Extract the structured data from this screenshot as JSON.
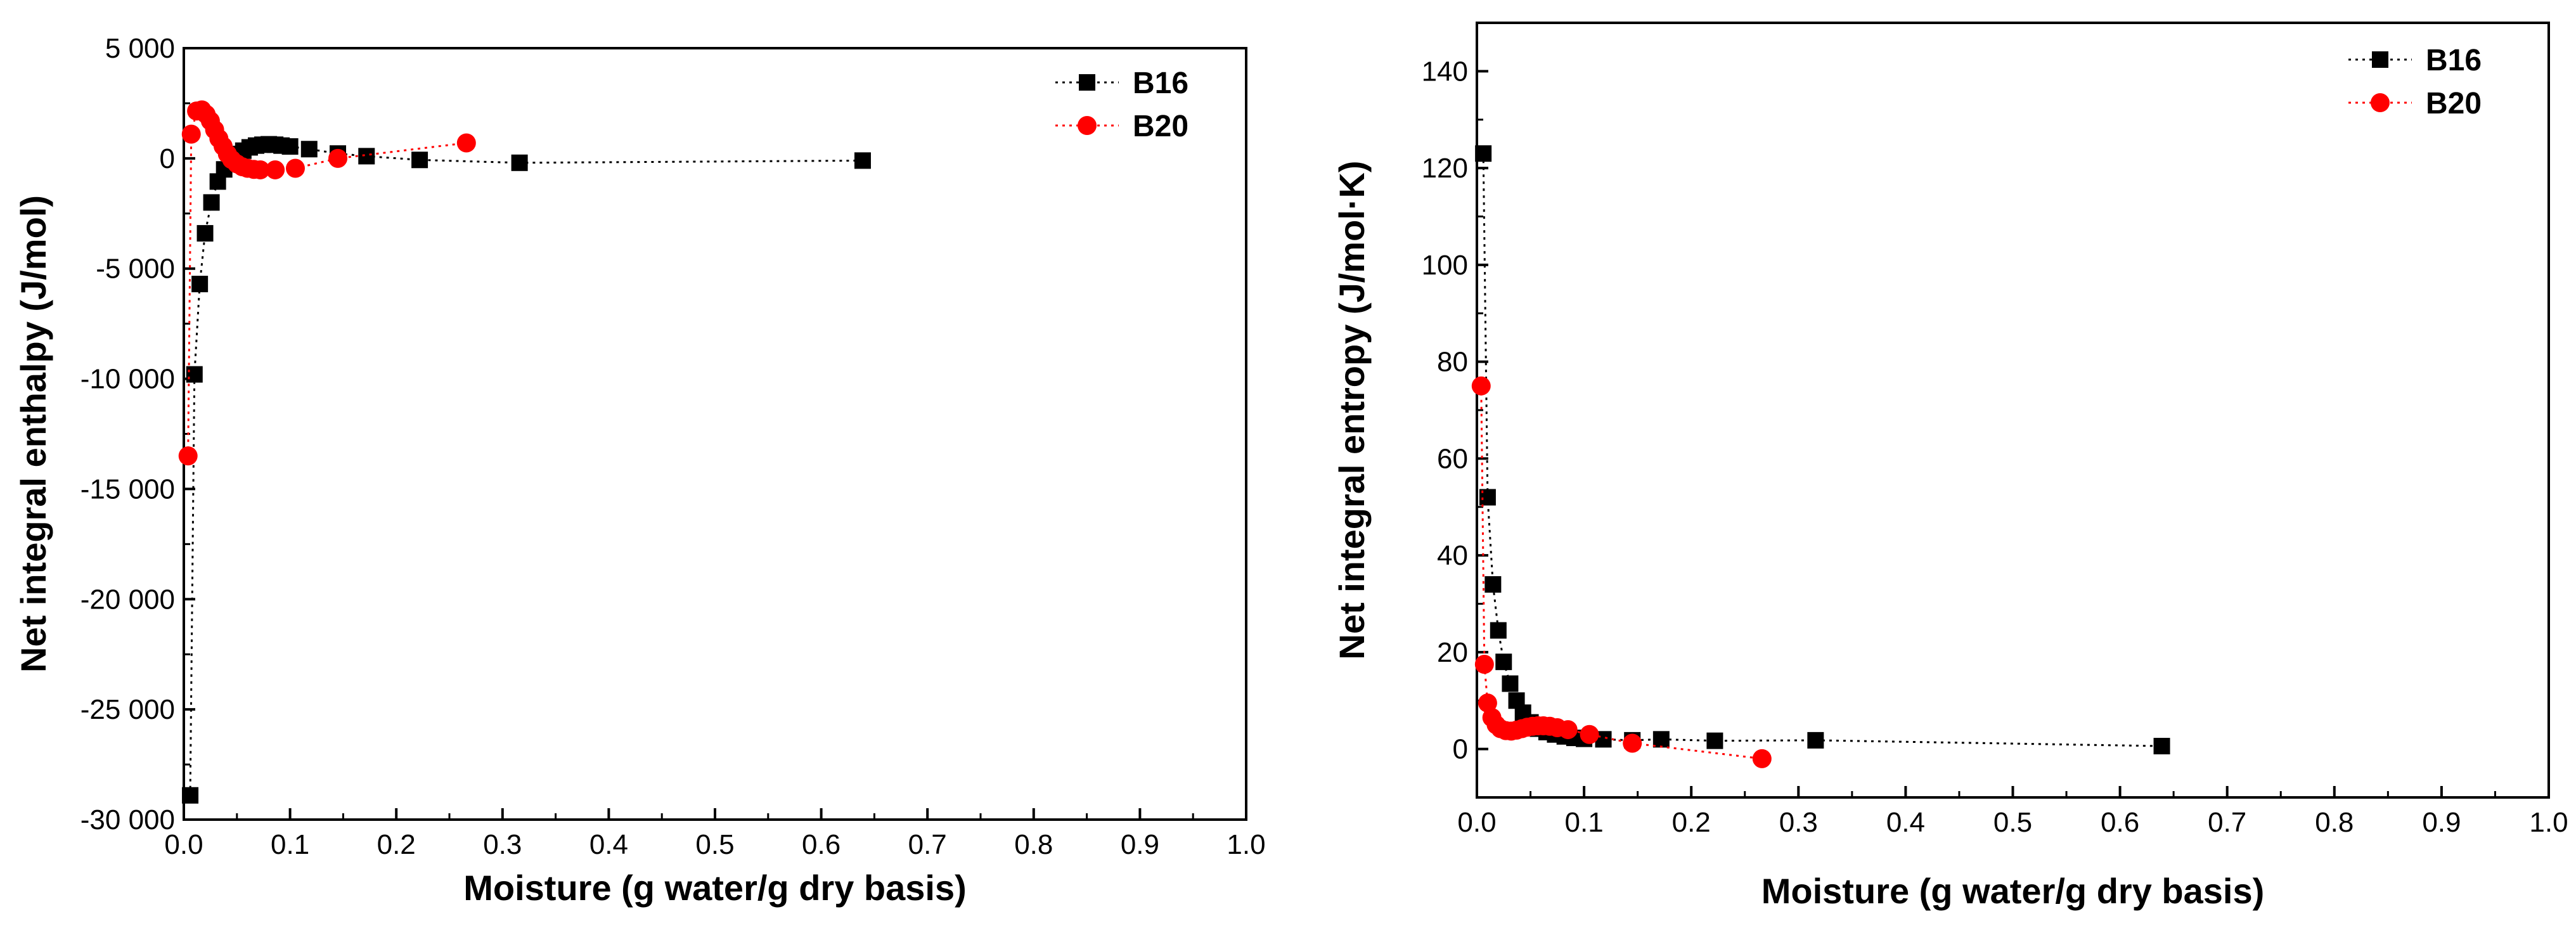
{
  "chart_data": [
    {
      "type": "scatter",
      "title": "",
      "xlabel": "Moisture (g water/g dry basis)",
      "ylabel": "Net integral enthalpy (J/mol)",
      "xlim": [
        0.0,
        1.0
      ],
      "ylim": [
        -30000,
        5000
      ],
      "xticks": [
        0.0,
        0.1,
        0.2,
        0.3,
        0.4,
        0.5,
        0.6,
        0.7,
        0.8,
        0.9,
        1.0
      ],
      "xtick_labels": [
        "0.0",
        "0.1",
        "0.2",
        "0.3",
        "0.4",
        "0.5",
        "0.6",
        "0.7",
        "0.8",
        "0.9",
        "1.0"
      ],
      "yticks": [
        -30000,
        -25000,
        -20000,
        -15000,
        -10000,
        -5000,
        0,
        5000
      ],
      "ytick_labels": [
        "-30 000",
        "-25 000",
        "-20 000",
        "-15 000",
        "-10 000",
        "-5 000",
        "0",
        "5 000"
      ],
      "legend_position": "top-right",
      "series": [
        {
          "name": "B16",
          "marker": "square",
          "color": "#000000",
          "x": [
            0.006,
            0.01,
            0.015,
            0.02,
            0.026,
            0.032,
            0.038,
            0.044,
            0.05,
            0.056,
            0.062,
            0.068,
            0.074,
            0.08,
            0.086,
            0.092,
            0.1,
            0.118,
            0.145,
            0.172,
            0.222,
            0.316,
            0.639
          ],
          "y": [
            -28900,
            -9800,
            -5700,
            -3400,
            -2000,
            -1050,
            -500,
            -100,
            200,
            350,
            500,
            580,
            620,
            640,
            620,
            580,
            540,
            420,
            220,
            100,
            -70,
            -200,
            -100
          ]
        },
        {
          "name": "B20",
          "marker": "circle",
          "color": "#ff0000",
          "x": [
            0.004,
            0.007,
            0.012,
            0.017,
            0.021,
            0.025,
            0.029,
            0.033,
            0.037,
            0.041,
            0.045,
            0.05,
            0.055,
            0.06,
            0.066,
            0.072,
            0.086,
            0.105,
            0.145,
            0.266
          ],
          "y": [
            -13500,
            1100,
            2150,
            2200,
            2000,
            1700,
            1300,
            900,
            550,
            200,
            -50,
            -250,
            -380,
            -450,
            -500,
            -520,
            -520,
            -450,
            0,
            700
          ]
        }
      ]
    },
    {
      "type": "scatter",
      "title": "",
      "xlabel": "Moisture (g water/g dry basis)",
      "ylabel": "Net integral entropy (J/mol·K)",
      "xlim": [
        0.0,
        1.0
      ],
      "ylim": [
        -10,
        150
      ],
      "xticks": [
        0.0,
        0.1,
        0.2,
        0.3,
        0.4,
        0.5,
        0.6,
        0.7,
        0.8,
        0.9,
        1.0
      ],
      "xtick_labels": [
        "0.0",
        "0.1",
        "0.2",
        "0.3",
        "0.4",
        "0.5",
        "0.6",
        "0.7",
        "0.8",
        "0.9",
        "1.0"
      ],
      "yticks": [
        0,
        20,
        40,
        60,
        80,
        100,
        120,
        140
      ],
      "ytick_labels": [
        "0",
        "20",
        "40",
        "60",
        "80",
        "100",
        "120",
        "140"
      ],
      "legend_position": "top-right",
      "series": [
        {
          "name": "B16",
          "marker": "square",
          "color": "#000000",
          "x": [
            0.006,
            0.01,
            0.015,
            0.02,
            0.025,
            0.031,
            0.037,
            0.043,
            0.05,
            0.057,
            0.065,
            0.073,
            0.082,
            0.091,
            0.1,
            0.118,
            0.145,
            0.172,
            0.222,
            0.316,
            0.639
          ],
          "y": [
            123,
            52,
            34,
            24.5,
            18,
            13.5,
            10,
            7.5,
            5.5,
            4.2,
            3.5,
            3.0,
            2.6,
            2.3,
            2.1,
            2.0,
            1.8,
            2.0,
            1.7,
            1.8,
            0.6
          ]
        },
        {
          "name": "B20",
          "marker": "circle",
          "color": "#ff0000",
          "x": [
            0.004,
            0.007,
            0.01,
            0.014,
            0.018,
            0.022,
            0.027,
            0.032,
            0.037,
            0.042,
            0.047,
            0.052,
            0.057,
            0.062,
            0.068,
            0.075,
            0.085,
            0.105,
            0.145,
            0.266
          ],
          "y": [
            75,
            17.5,
            9.5,
            6.5,
            5.0,
            4.2,
            3.8,
            3.7,
            3.9,
            4.2,
            4.5,
            4.7,
            4.8,
            4.8,
            4.7,
            4.4,
            4.0,
            3.0,
            1.2,
            -2.0
          ]
        }
      ]
    }
  ]
}
